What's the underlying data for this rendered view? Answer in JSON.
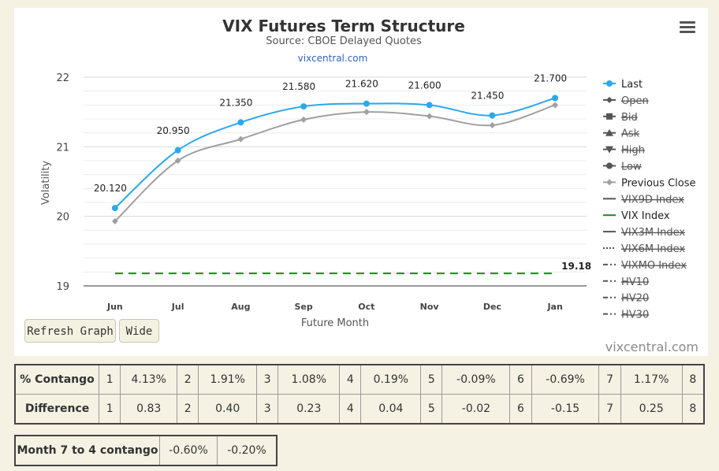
{
  "chart_data": {
    "type": "line",
    "title": "VIX Futures Term Structure",
    "subtitle": "Source: CBOE Delayed Quotes",
    "link": "vixcentral.com",
    "xlabel": "Future Month",
    "ylabel": "Volatility",
    "categories": [
      "Jun",
      "Jul",
      "Aug",
      "Sep",
      "Oct",
      "Nov",
      "Dec",
      "Jan"
    ],
    "ylim": [
      19,
      22
    ],
    "yticks": [
      19,
      20,
      21,
      22
    ],
    "grid": true,
    "legend_position": "right",
    "series": [
      {
        "name": "Last",
        "color": "#2ba8ee",
        "values": [
          20.12,
          20.95,
          21.35,
          21.58,
          21.62,
          21.6,
          21.45,
          21.7
        ],
        "labels": [
          "20.120",
          "20.950",
          "21.350",
          "21.580",
          "21.620",
          "21.600",
          "21.450",
          "21.700"
        ]
      },
      {
        "name": "Previous Close",
        "color": "#a0a0a0",
        "values": [
          19.93,
          20.8,
          21.11,
          21.39,
          21.5,
          21.44,
          21.31,
          21.6
        ]
      },
      {
        "name": "VIX Index",
        "color": "#1a8a1a",
        "values": [
          19.18,
          19.18,
          19.18,
          19.18,
          19.18,
          19.18,
          19.18,
          19.18
        ],
        "end_label": "19.18"
      }
    ],
    "legend": [
      {
        "name": "Last",
        "marker": "circle",
        "color": "#2ba8ee",
        "active": true
      },
      {
        "name": "Open",
        "marker": "diamond",
        "color": "#555",
        "active": false
      },
      {
        "name": "Bid",
        "marker": "square",
        "color": "#555",
        "active": false
      },
      {
        "name": "Ask",
        "marker": "triangle",
        "color": "#555",
        "active": false
      },
      {
        "name": "High",
        "marker": "triangle-down",
        "color": "#555",
        "active": false
      },
      {
        "name": "Low",
        "marker": "circle",
        "color": "#555",
        "active": false
      },
      {
        "name": "Previous Close",
        "marker": "diamond",
        "color": "#a0a0a0",
        "active": true
      },
      {
        "name": "VIX9D Index",
        "marker": "solid",
        "color": "#555",
        "active": false
      },
      {
        "name": "VIX Index",
        "marker": "solid",
        "color": "#1a8a1a",
        "active": true
      },
      {
        "name": "VIX3M Index",
        "marker": "solid",
        "color": "#555",
        "active": false
      },
      {
        "name": "VIX6M Index",
        "marker": "dotted",
        "color": "#555",
        "active": false
      },
      {
        "name": "VIXMO Index",
        "marker": "dashdot",
        "color": "#555",
        "active": false
      },
      {
        "name": "HV10",
        "marker": "dashdot",
        "color": "#555",
        "active": false
      },
      {
        "name": "HV20",
        "marker": "dashdot",
        "color": "#555",
        "active": false
      },
      {
        "name": "HV30",
        "marker": "dashdot",
        "color": "#555",
        "active": false
      }
    ]
  },
  "controls": {
    "refresh_label": "Refresh Graph",
    "wide_label": "Wide",
    "credit": "vixcentral.com"
  },
  "contango_table": {
    "rows": [
      {
        "label": "% Contango",
        "cells": [
          "1",
          "4.13%",
          "2",
          "1.91%",
          "3",
          "1.08%",
          "4",
          "0.19%",
          "5",
          "-0.09%",
          "6",
          "-0.69%",
          "7",
          "1.17%",
          "8"
        ]
      },
      {
        "label": "Difference",
        "cells": [
          "1",
          "0.83",
          "2",
          "0.40",
          "3",
          "0.23",
          "4",
          "0.04",
          "5",
          "-0.02",
          "6",
          "-0.15",
          "7",
          "0.25",
          "8"
        ]
      }
    ]
  },
  "month_table": {
    "label": "Month 7 to 4 contango",
    "values": [
      "-0.60%",
      "-0.20%"
    ]
  }
}
